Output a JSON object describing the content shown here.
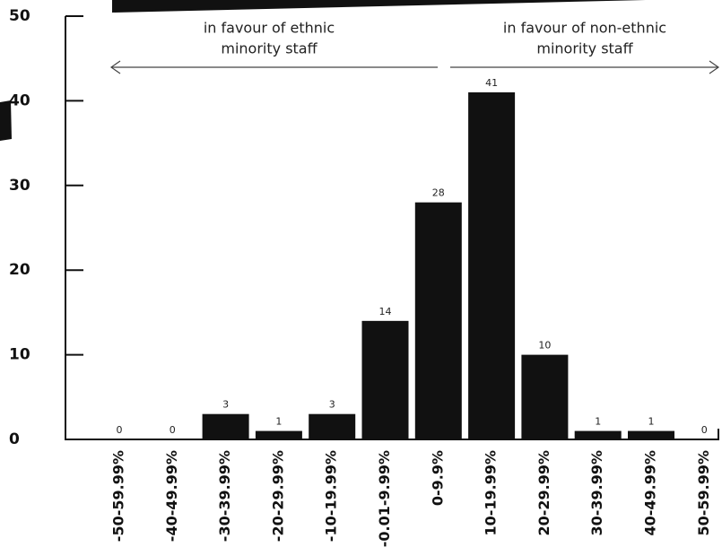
{
  "chart_data": {
    "type": "bar",
    "categories": [
      "-50-59.99%",
      "-40-49.99%",
      "-30-39.99%",
      "-20-29.99%",
      "-10-19.99%",
      "-0.01-9.99%",
      "0-9.9%",
      "10-19.99%",
      "20-29.99%",
      "30-39.99%",
      "40-49.99%",
      "50-59.99%"
    ],
    "values": [
      0,
      0,
      3,
      1,
      3,
      14,
      28,
      41,
      10,
      1,
      1,
      0
    ],
    "color": "#111111",
    "ylim": [
      0,
      50
    ],
    "yticks": [
      0,
      10,
      20,
      30,
      40,
      50
    ],
    "annotations": [
      {
        "lines": [
          "in favour of ethnic",
          "minority staff"
        ]
      },
      {
        "lines": [
          "in favour of non-ethnic",
          "minority staff"
        ]
      }
    ]
  }
}
